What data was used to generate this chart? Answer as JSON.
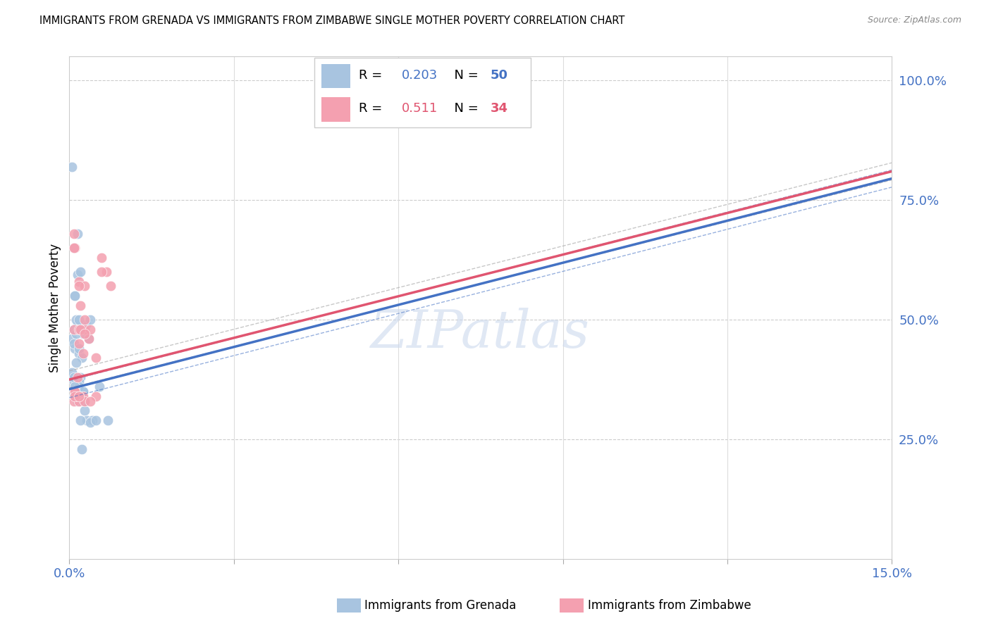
{
  "title": "IMMIGRANTS FROM GRENADA VS IMMIGRANTS FROM ZIMBABWE SINGLE MOTHER POVERTY CORRELATION CHART",
  "source": "Source: ZipAtlas.com",
  "ylabel": "Single Mother Poverty",
  "right_yticks": [
    0.0,
    0.25,
    0.5,
    0.75,
    1.0
  ],
  "right_yticklabels": [
    "",
    "25.0%",
    "50.0%",
    "75.0%",
    "100.0%"
  ],
  "watermark": "ZIPatlas",
  "legend_grenada": "Immigrants from Grenada",
  "legend_zimbabwe": "Immigrants from Zimbabwe",
  "R_grenada": 0.203,
  "N_grenada": 50,
  "R_zimbabwe": 0.511,
  "N_zimbabwe": 34,
  "color_grenada": "#a8c4e0",
  "color_zimbabwe": "#f4a0b0",
  "line_color_grenada": "#4472c4",
  "line_color_zimbabwe": "#e05570",
  "text_color_blue": "#4472c4",
  "trend_grenada_y0": 0.355,
  "trend_grenada_y1": 0.795,
  "trend_zimbabwe_y0": 0.375,
  "trend_zimbabwe_y1": 0.81,
  "scatter_grenada_x": [
    0.0008,
    0.0015,
    0.001,
    0.0025,
    0.0018,
    0.0005,
    0.002,
    0.0012,
    0.0008,
    0.003,
    0.0015,
    0.001,
    0.0022,
    0.0018,
    0.0012,
    0.0008,
    0.0005,
    0.0018,
    0.0012,
    0.0035,
    0.0008,
    0.0015,
    0.001,
    0.002,
    0.0025,
    0.0008,
    0.0012,
    0.0018,
    0.001,
    0.0025,
    0.0032,
    0.0042,
    0.0028,
    0.0038,
    0.0022,
    0.0008,
    0.0015,
    0.001,
    0.0028,
    0.0008,
    0.0005,
    0.0018,
    0.0008,
    0.001,
    0.0012,
    0.002,
    0.0038,
    0.0048,
    0.0055,
    0.007
  ],
  "scatter_grenada_y": [
    0.48,
    0.49,
    0.44,
    0.47,
    0.43,
    0.46,
    0.38,
    0.5,
    0.45,
    0.49,
    0.68,
    0.55,
    0.42,
    0.5,
    0.47,
    0.37,
    0.39,
    0.37,
    0.34,
    0.46,
    0.65,
    0.595,
    0.55,
    0.6,
    0.35,
    0.355,
    0.345,
    0.36,
    0.34,
    0.35,
    0.29,
    0.29,
    0.31,
    0.285,
    0.23,
    0.34,
    0.33,
    0.34,
    0.33,
    0.34,
    0.82,
    0.44,
    0.38,
    0.36,
    0.41,
    0.29,
    0.5,
    0.29,
    0.36,
    0.29
  ],
  "scatter_zimbabwe_x": [
    0.0008,
    0.0018,
    0.001,
    0.0025,
    0.002,
    0.0035,
    0.0015,
    0.001,
    0.0028,
    0.0018,
    0.0008,
    0.002,
    0.0028,
    0.001,
    0.0018,
    0.0038,
    0.0025,
    0.0048,
    0.0058,
    0.0075,
    0.0008,
    0.0018,
    0.0028,
    0.0008,
    0.0018,
    0.001,
    0.0028,
    0.0018,
    0.0038,
    0.0048,
    0.0028,
    0.0068,
    0.0018,
    0.0058
  ],
  "scatter_zimbabwe_y": [
    0.48,
    0.58,
    0.65,
    0.43,
    0.53,
    0.46,
    0.38,
    0.35,
    0.48,
    0.48,
    0.65,
    0.48,
    0.57,
    0.35,
    0.34,
    0.48,
    0.34,
    0.34,
    0.63,
    0.57,
    0.68,
    0.45,
    0.47,
    0.33,
    0.33,
    0.34,
    0.33,
    0.34,
    0.33,
    0.42,
    0.5,
    0.6,
    0.57,
    0.6
  ],
  "xmin": 0.0,
  "xmax": 0.15,
  "ymin": 0.0,
  "ymax": 1.05,
  "xtick_positions": [
    0.0,
    0.03,
    0.06,
    0.09,
    0.12,
    0.15
  ],
  "ytick_grid": [
    0.25,
    0.5,
    0.75,
    1.0
  ]
}
